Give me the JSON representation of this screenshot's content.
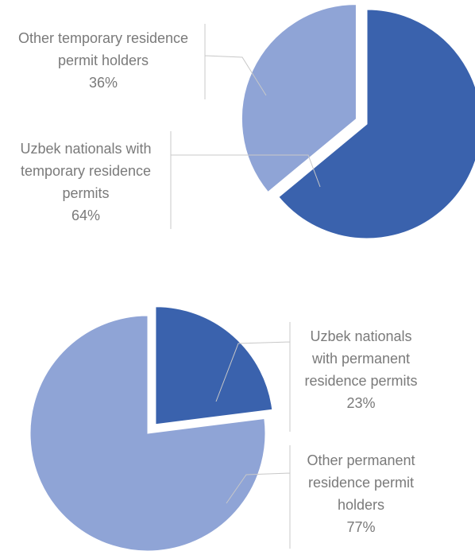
{
  "chart_data": [
    {
      "type": "pie",
      "categories": [
        "Uzbek nationals with temporary residence permits",
        "Other temporary residence permit holders"
      ],
      "values": [
        64,
        36
      ],
      "value_labels": [
        "64%",
        "36%"
      ],
      "colors": [
        "#3a62ad",
        "#8fa4d6"
      ]
    },
    {
      "type": "pie",
      "categories": [
        "Uzbek nationals with permanent residence permits",
        "Other permanent residence permit holders"
      ],
      "values": [
        23,
        77
      ],
      "value_labels": [
        "23%",
        "77%"
      ],
      "colors": [
        "#3a62ad",
        "#8fa4d6"
      ]
    }
  ]
}
